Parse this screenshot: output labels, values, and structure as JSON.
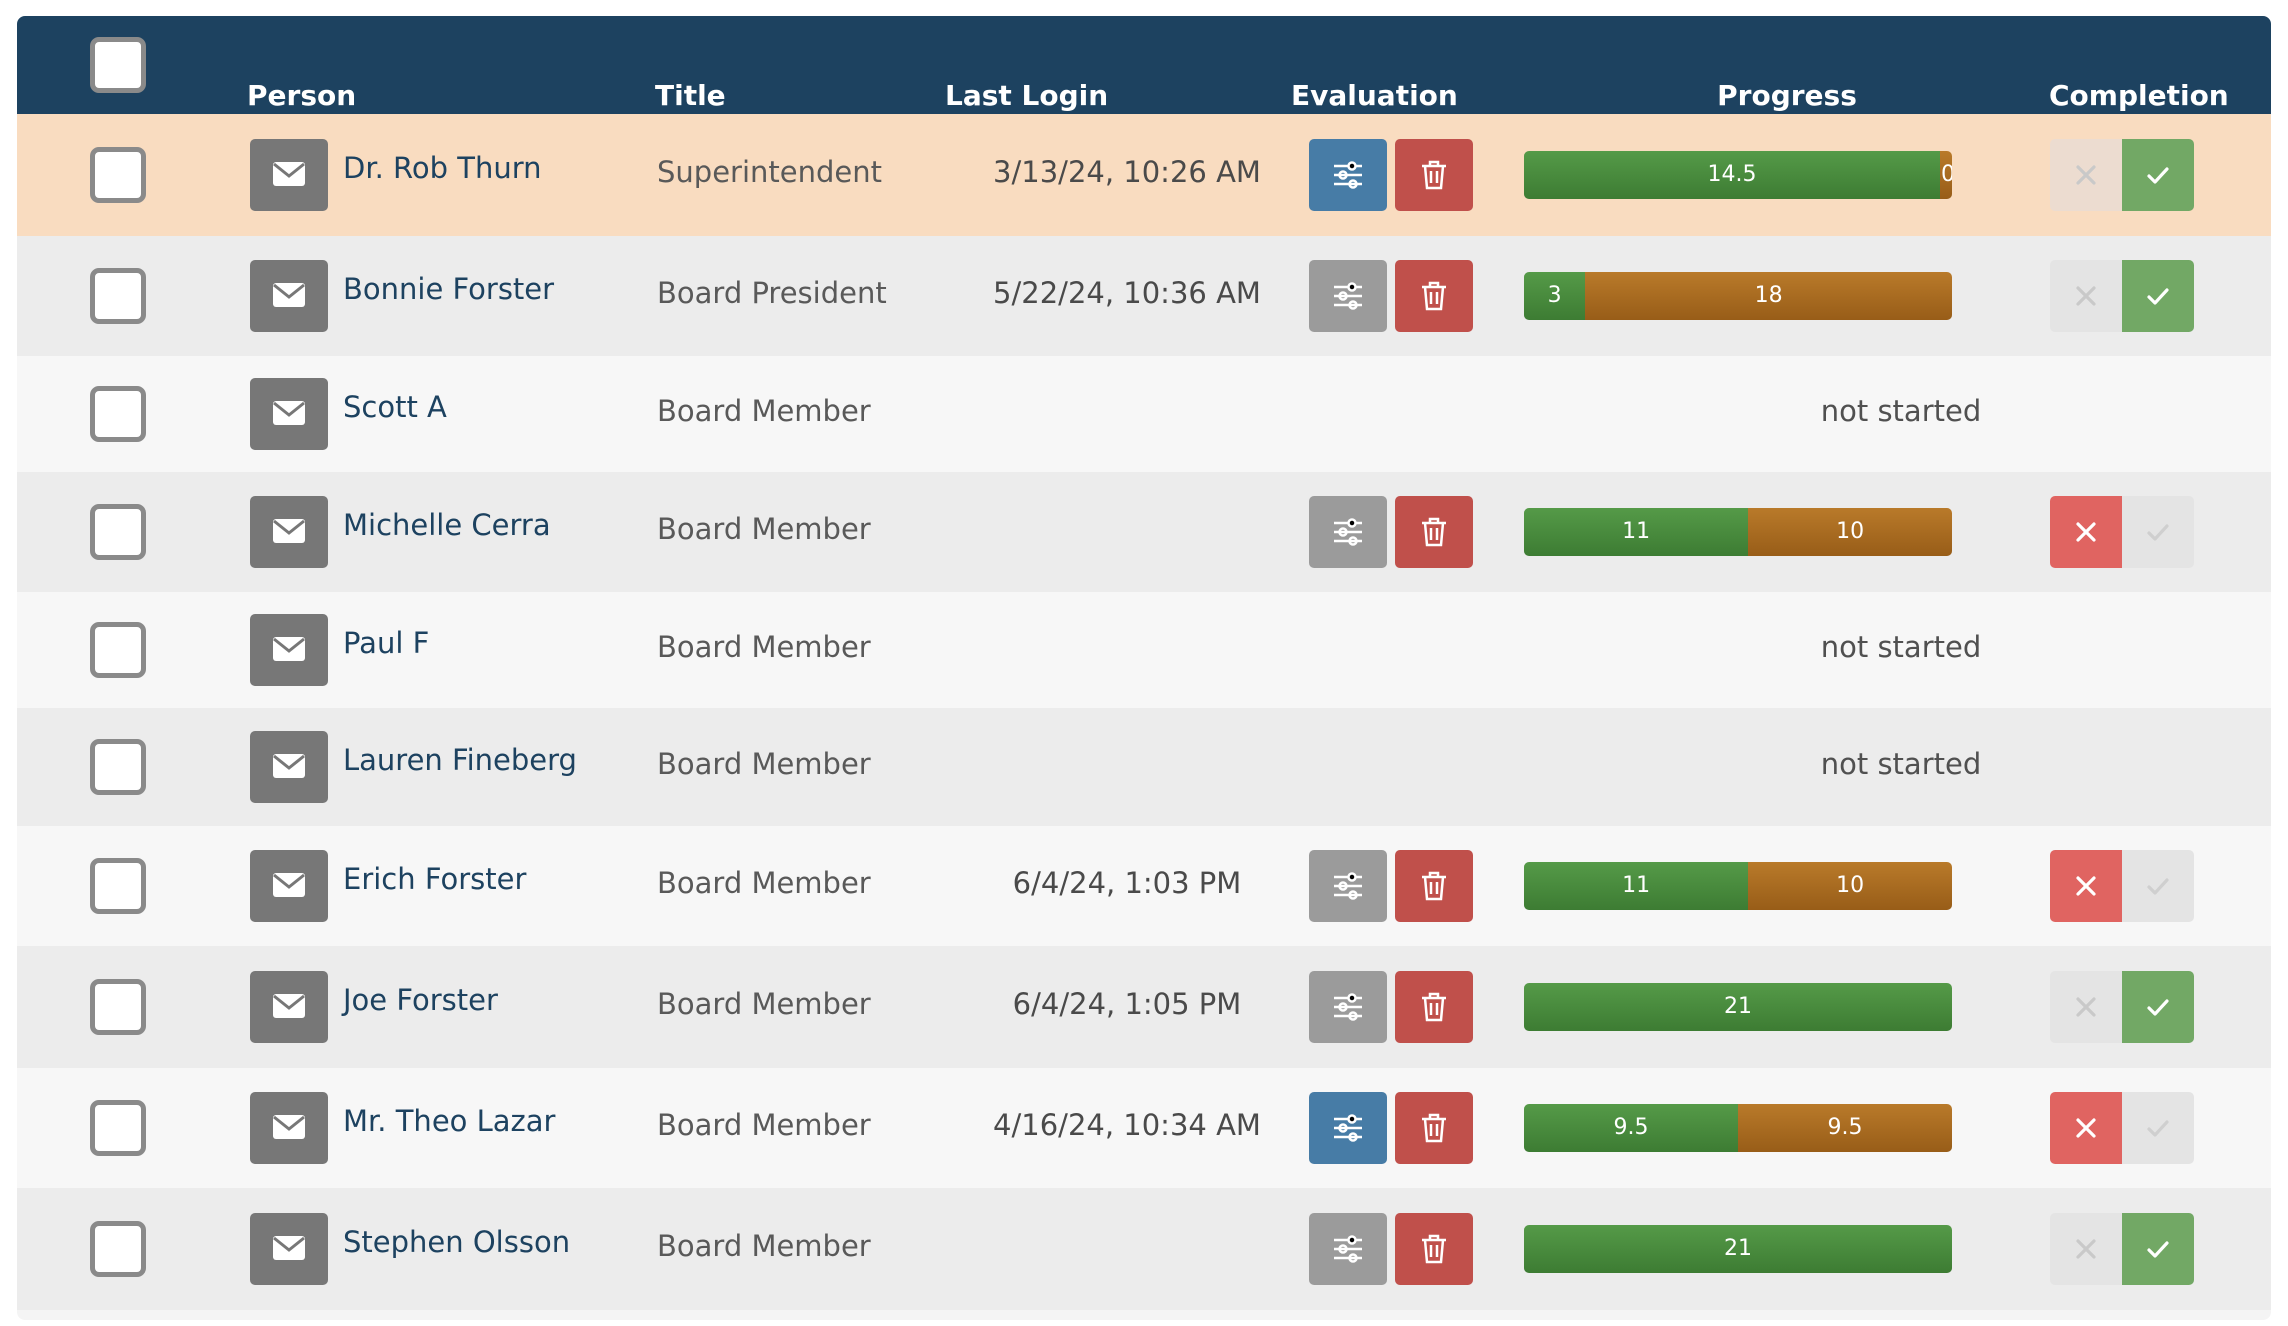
{
  "header": {
    "select_all": false,
    "columns": {
      "person": "Person",
      "title": "Title",
      "last_login": "Last Login",
      "evaluation": "Evaluation",
      "progress": "Progress",
      "completion": "Completion"
    }
  },
  "colors": {
    "header_bg": "#1d4260",
    "highlight_row": "#f9dcc0",
    "row_even": "#ececec",
    "row_odd": "#f7f7f7",
    "progress_green": "#4a8c3e",
    "progress_orange": "#a86a22",
    "settings_active": "#477ca6",
    "settings_inactive": "#9b9b9b",
    "delete": "#c0504b",
    "x_active": "#e06461",
    "check_active": "#72a865",
    "inactive": "#e4e4e4"
  },
  "rows": [
    {
      "name": "Dr. Rob Thurn",
      "title": "Superintendent",
      "last_login": "3/13/24, 10:26 AM",
      "evaluation": "active",
      "progress": [
        {
          "color": "green",
          "value": 14.5,
          "label": "14.5"
        },
        {
          "color": "orange",
          "value": 0,
          "label": "0"
        }
      ],
      "not_started": "",
      "completion": "complete",
      "highlight": true
    },
    {
      "name": "Bonnie Forster",
      "title": "Board President",
      "last_login": "5/22/24, 10:36 AM",
      "evaluation": "inactive",
      "progress": [
        {
          "color": "green",
          "value": 3,
          "label": "3"
        },
        {
          "color": "orange",
          "value": 18,
          "label": "18"
        }
      ],
      "not_started": "",
      "completion": "complete"
    },
    {
      "name": "Scott A",
      "title": "Board Member",
      "last_login": "",
      "evaluation": "none",
      "progress": [],
      "not_started": "not started",
      "completion": "none"
    },
    {
      "name": "Michelle Cerra",
      "title": "Board Member",
      "last_login": "",
      "evaluation": "inactive",
      "progress": [
        {
          "color": "green",
          "value": 11,
          "label": "11"
        },
        {
          "color": "orange",
          "value": 10,
          "label": "10"
        }
      ],
      "not_started": "",
      "completion": "incomplete"
    },
    {
      "name": "Paul F",
      "title": "Board Member",
      "last_login": "",
      "evaluation": "none",
      "progress": [],
      "not_started": "not started",
      "completion": "none"
    },
    {
      "name": "Lauren Fineberg",
      "title": "Board Member",
      "last_login": "",
      "evaluation": "none",
      "progress": [],
      "not_started": "not started",
      "completion": "none"
    },
    {
      "name": "Erich Forster",
      "title": "Board Member",
      "last_login": "6/4/24, 1:03 PM",
      "evaluation": "inactive",
      "progress": [
        {
          "color": "green",
          "value": 11,
          "label": "11"
        },
        {
          "color": "orange",
          "value": 10,
          "label": "10"
        }
      ],
      "not_started": "",
      "completion": "incomplete"
    },
    {
      "name": "Joe Forster",
      "title": "Board Member",
      "last_login": "6/4/24, 1:05 PM",
      "evaluation": "inactive",
      "progress": [
        {
          "color": "green",
          "value": 21,
          "label": "21"
        }
      ],
      "not_started": "",
      "completion": "complete"
    },
    {
      "name": "Mr. Theo Lazar",
      "title": "Board Member",
      "last_login": "4/16/24, 10:34 AM",
      "evaluation": "active",
      "progress": [
        {
          "color": "green",
          "value": 9.5,
          "label": "9.5"
        },
        {
          "color": "orange",
          "value": 9.5,
          "label": "9.5"
        }
      ],
      "not_started": "",
      "completion": "incomplete"
    },
    {
      "name": "Stephen Olsson",
      "title": "Board Member",
      "last_login": "",
      "evaluation": "inactive",
      "progress": [
        {
          "color": "green",
          "value": 21,
          "label": "21"
        }
      ],
      "not_started": "",
      "completion": "complete"
    }
  ]
}
